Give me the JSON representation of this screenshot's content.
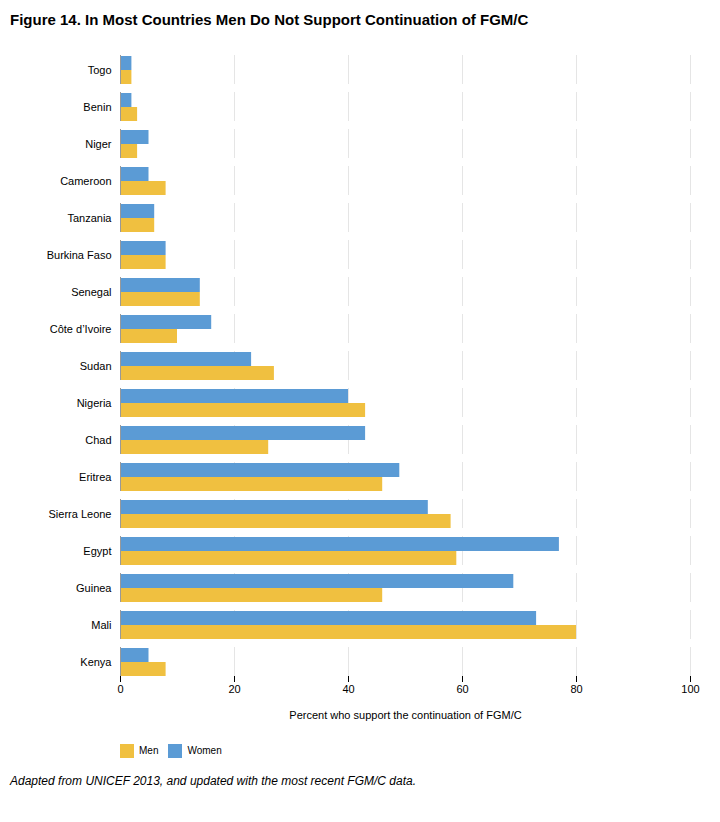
{
  "chart_data": {
    "type": "bar",
    "orientation": "horizontal",
    "title": "Figure 14. In Most Countries Men Do Not Support Continuation of FGM/C",
    "xlabel": "Percent who support the continuation of FGM/C",
    "footnote": "Adapted from UNICEF 2013, and updated with the most recent FGM/C data.",
    "categories": [
      "Kenya",
      "Mali",
      "Guinea",
      "Egypt",
      "Sierra Leone",
      "Eritrea",
      "Chad",
      "Nigeria",
      "Sudan",
      "Côte d’Ivoire",
      "Senegal",
      "Burkina Faso",
      "Tanzania",
      "Cameroon",
      "Niger",
      "Benin",
      "Togo"
    ],
    "series": [
      {
        "name": "Men",
        "color": "#F0C040",
        "values": [
          8,
          80,
          46,
          59,
          58,
          46,
          26,
          43,
          27,
          10,
          14,
          8,
          6,
          8,
          3,
          3,
          2
        ]
      },
      {
        "name": "Women",
        "color": "#5B9BD5",
        "values": [
          5,
          73,
          69,
          77,
          54,
          49,
          43,
          40,
          23,
          16,
          14,
          8,
          6,
          5,
          5,
          2,
          2
        ]
      }
    ],
    "xlim": [
      0,
      100
    ],
    "xticks": [
      0,
      20,
      40,
      60,
      80,
      100
    ],
    "grid": true,
    "legend": "lower left"
  }
}
